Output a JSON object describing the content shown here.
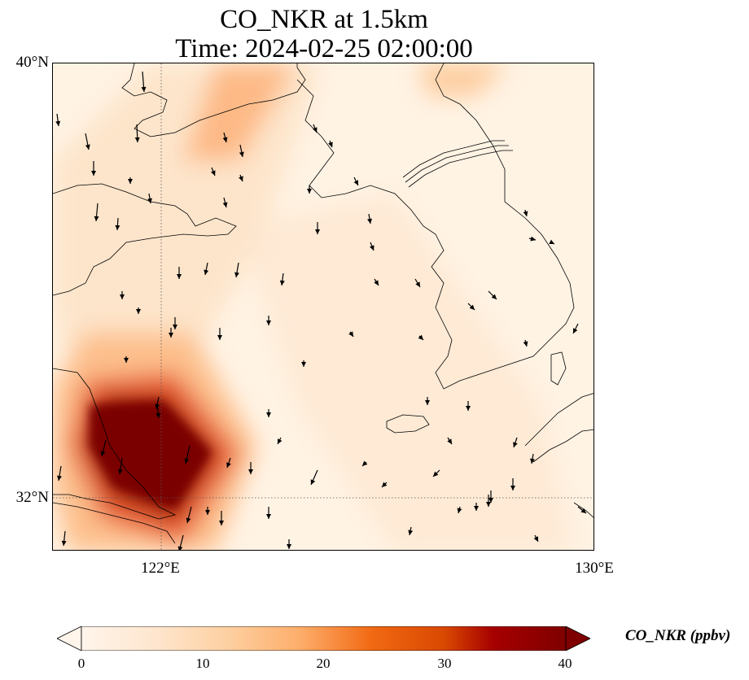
{
  "title_line1": "CO_NKR at 1.5km",
  "title_line2": "Time: 2024-02-25 02:00:00",
  "axes": {
    "lat_labels": [
      "40°N",
      "32°N"
    ],
    "lon_labels": [
      "122°E",
      "130°E"
    ]
  },
  "colorbar": {
    "label": "CO_NKR (ppbv)",
    "ticks": [
      "0",
      "10",
      "20",
      "30",
      "40"
    ],
    "min": 0,
    "max": 40,
    "colormap": [
      "#fff5eb",
      "#fee6ce",
      "#fdd0a2",
      "#fdae6b",
      "#fd8d3c",
      "#f16913",
      "#d94801",
      "#a63603",
      "#7f2704"
    ],
    "extend": "both"
  },
  "map": {
    "lon_range": [
      120,
      130
    ],
    "lat_range": [
      31,
      40
    ],
    "gridlines": {
      "lon": [
        122
      ],
      "lat": [
        32
      ],
      "style": "dotted"
    }
  }
}
